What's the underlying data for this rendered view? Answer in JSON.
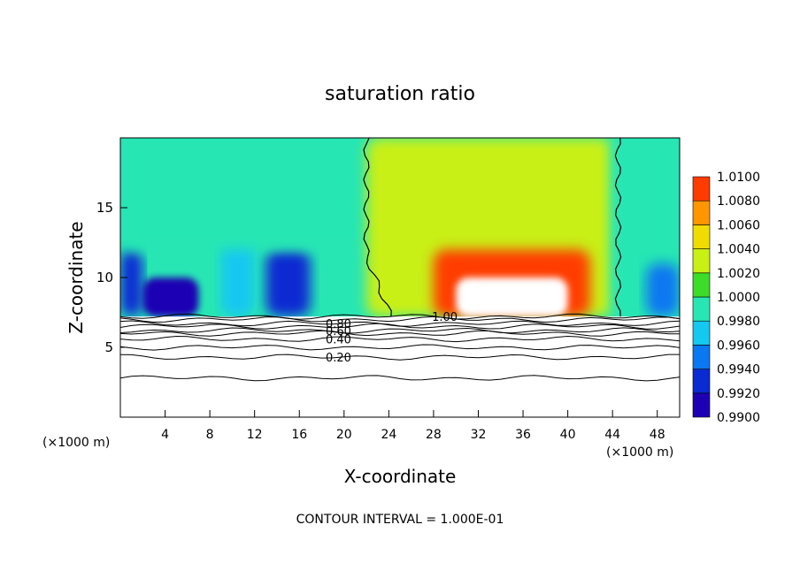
{
  "chart_data": {
    "type": "heatmap",
    "title": "saturation ratio",
    "xlabel": "X-coordinate",
    "ylabel": "Z-coordinate",
    "x_unit_left": "(×1000 m)",
    "x_unit_right": "(×1000 m)",
    "footer": "CONTOUR INTERVAL = 1.000E-01",
    "xlim": [
      0,
      50
    ],
    "ylim": [
      0,
      20
    ],
    "x_ticks": [
      4,
      8,
      12,
      16,
      20,
      24,
      28,
      32,
      36,
      40,
      44,
      48
    ],
    "y_ticks": [
      5,
      10,
      15
    ],
    "grid": false,
    "colorbar": {
      "levels": [
        "0.9900",
        "0.9920",
        "0.9940",
        "0.9960",
        "0.9980",
        "1.0000",
        "1.0020",
        "1.0040",
        "1.0060",
        "1.0080",
        "1.0100"
      ],
      "colors": [
        "#5a1e8c",
        "#1e00b4",
        "#0a2ad2",
        "#0a78f0",
        "#14c8f0",
        "#28e6b4",
        "#3cdc28",
        "#c8f014",
        "#f0dc00",
        "#ff9600",
        "#ff3c00",
        "#e60000",
        "#f07878"
      ]
    },
    "surface_height": 7.2,
    "contours": [
      {
        "label": "0.20",
        "z": 4.3
      },
      {
        "label": "0.40",
        "z": 5.6
      },
      {
        "label": "0.60",
        "z": 6.2
      },
      {
        "label": "0.80",
        "z": 6.7
      },
      {
        "label": "1.00",
        "z": 7.2
      }
    ],
    "contour_line_levels": [
      2.8,
      4.3,
      5.0,
      5.6,
      6.0,
      6.2,
      6.5,
      6.7,
      7.0,
      7.2
    ],
    "unity_contour_x_at_top": [
      22,
      44.5
    ],
    "field_regions": [
      {
        "x_range": [
          0,
          2
        ],
        "z_range": [
          7.2,
          12
        ],
        "value": 0.992
      },
      {
        "x_range": [
          2,
          7
        ],
        "z_range": [
          7.2,
          10
        ],
        "value": 0.991
      },
      {
        "x_range": [
          13,
          17
        ],
        "z_range": [
          7.2,
          12
        ],
        "value": 0.993
      },
      {
        "x_range": [
          9,
          12
        ],
        "z_range": [
          7.2,
          14
        ],
        "value": 0.997
      },
      {
        "x_range": [
          0,
          22
        ],
        "z_range": [
          12,
          20
        ],
        "value": 0.998
      },
      {
        "x_range": [
          22,
          44
        ],
        "z_range": [
          7.2,
          20
        ],
        "value": 1.002
      },
      {
        "x_range": [
          28,
          42
        ],
        "z_range": [
          7.2,
          12
        ],
        "value": 1.008
      },
      {
        "x_range": [
          30,
          40
        ],
        "z_range": [
          7.2,
          10
        ],
        "value": 1.01
      },
      {
        "x_range": [
          44,
          50
        ],
        "z_range": [
          7.2,
          20
        ],
        "value": 0.998
      },
      {
        "x_range": [
          47,
          50
        ],
        "z_range": [
          7.2,
          11
        ],
        "value": 0.994
      }
    ]
  }
}
